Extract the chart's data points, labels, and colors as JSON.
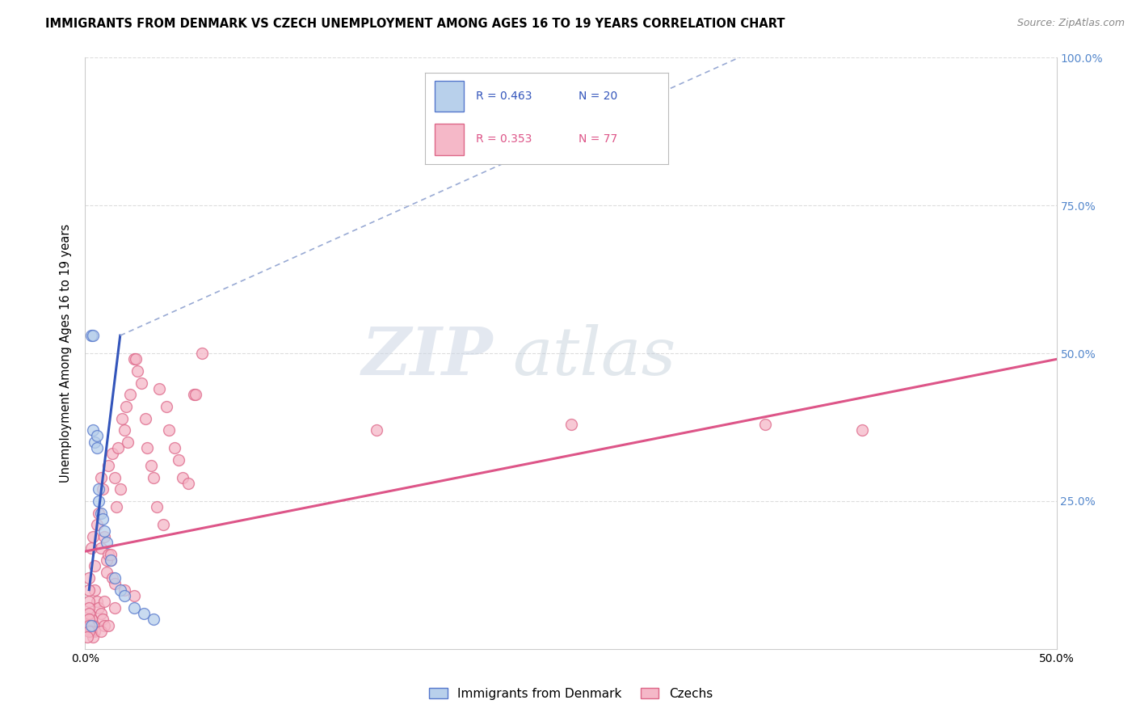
{
  "title": "IMMIGRANTS FROM DENMARK VS CZECH UNEMPLOYMENT AMONG AGES 16 TO 19 YEARS CORRELATION CHART",
  "source": "Source: ZipAtlas.com",
  "ylabel": "Unemployment Among Ages 16 to 19 years",
  "xlim": [
    0.0,
    0.5
  ],
  "ylim": [
    0.0,
    1.0
  ],
  "xtick_positions": [
    0.0,
    0.5
  ],
  "xtick_labels": [
    "0.0%",
    "50.0%"
  ],
  "yticks_right": [
    0.0,
    0.25,
    0.5,
    0.75,
    1.0
  ],
  "ytick_labels_right": [
    "",
    "25.0%",
    "50.0%",
    "75.0%",
    "100.0%"
  ],
  "color_blue_fill": "#b8d0eb",
  "color_blue_edge": "#5577cc",
  "color_pink_fill": "#f5b8c8",
  "color_pink_edge": "#dd6688",
  "trendline_blue_color": "#3355bb",
  "trendline_pink_color": "#dd5588",
  "trendline_ext_color": "#99aad4",
  "watermark_zip_color": "#c8d8e8",
  "watermark_atlas_color": "#c0cce0",
  "grid_color": "#dddddd",
  "legend_r1": "R = 0.463",
  "legend_n1": "N = 20",
  "legend_r2": "R = 0.353",
  "legend_n2": "N = 77",
  "denmark_scatter": [
    [
      0.003,
      0.53
    ],
    [
      0.004,
      0.53
    ],
    [
      0.004,
      0.37
    ],
    [
      0.005,
      0.35
    ],
    [
      0.006,
      0.36
    ],
    [
      0.006,
      0.34
    ],
    [
      0.007,
      0.27
    ],
    [
      0.007,
      0.25
    ],
    [
      0.008,
      0.23
    ],
    [
      0.009,
      0.22
    ],
    [
      0.01,
      0.2
    ],
    [
      0.011,
      0.18
    ],
    [
      0.013,
      0.15
    ],
    [
      0.015,
      0.12
    ],
    [
      0.018,
      0.1
    ],
    [
      0.02,
      0.09
    ],
    [
      0.025,
      0.07
    ],
    [
      0.03,
      0.06
    ],
    [
      0.035,
      0.05
    ],
    [
      0.003,
      0.04
    ]
  ],
  "czech_scatter": [
    [
      0.003,
      0.17
    ],
    [
      0.004,
      0.19
    ],
    [
      0.005,
      0.14
    ],
    [
      0.006,
      0.21
    ],
    [
      0.007,
      0.23
    ],
    [
      0.008,
      0.17
    ],
    [
      0.008,
      0.29
    ],
    [
      0.009,
      0.27
    ],
    [
      0.01,
      0.19
    ],
    [
      0.011,
      0.13
    ],
    [
      0.012,
      0.31
    ],
    [
      0.013,
      0.15
    ],
    [
      0.014,
      0.33
    ],
    [
      0.015,
      0.29
    ],
    [
      0.016,
      0.24
    ],
    [
      0.017,
      0.34
    ],
    [
      0.018,
      0.27
    ],
    [
      0.019,
      0.39
    ],
    [
      0.02,
      0.37
    ],
    [
      0.021,
      0.41
    ],
    [
      0.022,
      0.35
    ],
    [
      0.023,
      0.43
    ],
    [
      0.025,
      0.49
    ],
    [
      0.026,
      0.49
    ],
    [
      0.027,
      0.47
    ],
    [
      0.029,
      0.45
    ],
    [
      0.031,
      0.39
    ],
    [
      0.032,
      0.34
    ],
    [
      0.034,
      0.31
    ],
    [
      0.035,
      0.29
    ],
    [
      0.037,
      0.24
    ],
    [
      0.038,
      0.44
    ],
    [
      0.04,
      0.21
    ],
    [
      0.042,
      0.41
    ],
    [
      0.043,
      0.37
    ],
    [
      0.046,
      0.34
    ],
    [
      0.048,
      0.32
    ],
    [
      0.05,
      0.29
    ],
    [
      0.053,
      0.28
    ],
    [
      0.056,
      0.43
    ],
    [
      0.057,
      0.43
    ],
    [
      0.06,
      0.5
    ],
    [
      0.005,
      0.1
    ],
    [
      0.006,
      0.08
    ],
    [
      0.007,
      0.07
    ],
    [
      0.008,
      0.06
    ],
    [
      0.009,
      0.05
    ],
    [
      0.01,
      0.04
    ],
    [
      0.011,
      0.15
    ],
    [
      0.012,
      0.16
    ],
    [
      0.013,
      0.16
    ],
    [
      0.014,
      0.12
    ],
    [
      0.015,
      0.11
    ],
    [
      0.003,
      0.05
    ],
    [
      0.004,
      0.04
    ],
    [
      0.005,
      0.03
    ],
    [
      0.002,
      0.12
    ],
    [
      0.002,
      0.1
    ],
    [
      0.002,
      0.08
    ],
    [
      0.002,
      0.07
    ],
    [
      0.002,
      0.06
    ],
    [
      0.002,
      0.05
    ],
    [
      0.002,
      0.04
    ],
    [
      0.003,
      0.03
    ],
    [
      0.004,
      0.02
    ],
    [
      0.002,
      0.03
    ],
    [
      0.001,
      0.02
    ],
    [
      0.01,
      0.08
    ],
    [
      0.015,
      0.07
    ],
    [
      0.02,
      0.1
    ],
    [
      0.025,
      0.09
    ],
    [
      0.008,
      0.03
    ],
    [
      0.012,
      0.04
    ],
    [
      0.15,
      0.37
    ],
    [
      0.25,
      0.38
    ],
    [
      0.35,
      0.38
    ],
    [
      0.4,
      0.37
    ]
  ],
  "denmark_trendline_solid": [
    [
      0.002,
      0.1
    ],
    [
      0.018,
      0.53
    ]
  ],
  "denmark_trendline_dashed": [
    [
      0.018,
      0.53
    ],
    [
      0.35,
      1.02
    ]
  ],
  "czech_trendline": [
    [
      0.0,
      0.165
    ],
    [
      0.5,
      0.49
    ]
  ]
}
